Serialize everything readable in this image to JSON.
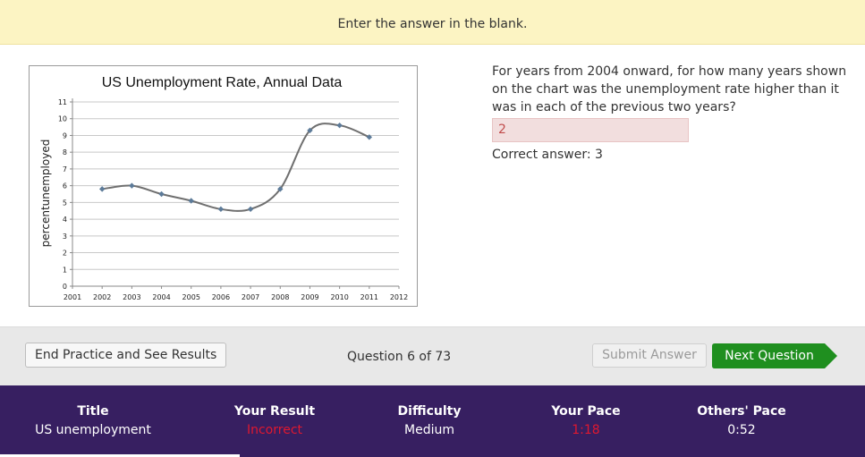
{
  "banner": {
    "instruction": "Enter the answer in the blank."
  },
  "question": {
    "text": "For years from 2004 onward, for how many years shown on the chart was the unemployment rate higher than it was in each of the previous two years?",
    "answer_value": "2",
    "correct_answer": "Correct answer: 3"
  },
  "chart_data": {
    "type": "line",
    "title": "US Unemployment Rate, Annual Data",
    "ylabel": "percentunemployed",
    "xlabel": "",
    "x": [
      2002,
      2003,
      2004,
      2005,
      2006,
      2007,
      2008,
      2009,
      2010,
      2011
    ],
    "series": [
      {
        "values": [
          5.8,
          6.0,
          5.5,
          5.1,
          4.6,
          4.6,
          5.8,
          9.3,
          9.6,
          8.9
        ]
      }
    ],
    "xlim": [
      2001,
      2012
    ],
    "ylim": [
      0,
      11
    ],
    "xticks": [
      "2001",
      "2002",
      "2003",
      "2004",
      "2005",
      "2006",
      "2007",
      "2008",
      "2009",
      "2010",
      "2011",
      "2012"
    ],
    "yticks": [
      "0",
      "1",
      "2",
      "3",
      "4",
      "5",
      "6",
      "7",
      "8",
      "9",
      "10",
      "11"
    ],
    "grid": true,
    "legend": "none",
    "line_color": "#6f6f6f",
    "marker_color": "#5d7b99"
  },
  "controls": {
    "end_label": "End Practice and See Results",
    "question_count": "Question 6 of 73",
    "submit_label": "Submit Answer",
    "next_label": "Next Question"
  },
  "footer": {
    "title_header": "Title",
    "title_value": "US unemployment",
    "result_header": "Your Result",
    "result_value": "Incorrect",
    "difficulty_header": "Difficulty",
    "difficulty_value": "Medium",
    "pace_header": "Your Pace",
    "pace_value": "1:18",
    "others_header": "Others' Pace",
    "others_value": "0:52"
  },
  "colors": {
    "banner_bg": "#fcf4c3",
    "footer_bg": "#371f61",
    "next_button": "#1f8f1f",
    "incorrect": "#e0182f",
    "answer_bg": "#f2dede"
  }
}
